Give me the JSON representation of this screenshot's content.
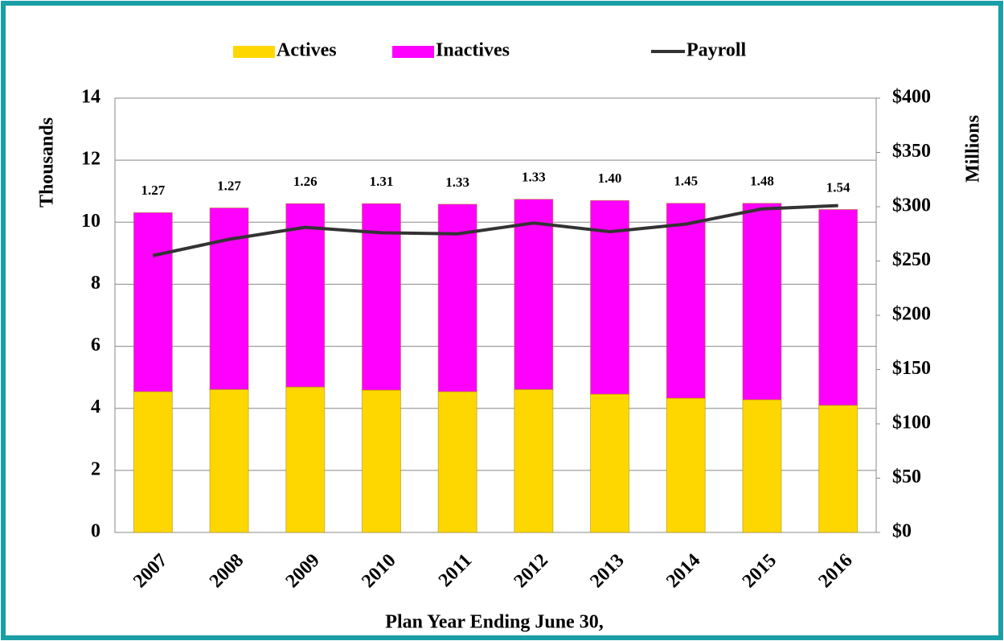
{
  "chart_data": {
    "type": "bar",
    "categories": [
      "2007",
      "2008",
      "2009",
      "2010",
      "2011",
      "2012",
      "2013",
      "2014",
      "2015",
      "2016"
    ],
    "series": [
      {
        "name": "Actives",
        "color": "#ffd700",
        "values": [
          4.54,
          4.61,
          4.69,
          4.59,
          4.54,
          4.61,
          4.46,
          4.33,
          4.28,
          4.1
        ]
      },
      {
        "name": "Inactives",
        "color": "#ff00ff",
        "values": [
          5.77,
          5.85,
          5.91,
          6.01,
          6.04,
          6.13,
          6.24,
          6.28,
          6.33,
          6.31
        ]
      },
      {
        "name": "Payroll",
        "type": "line",
        "axis": "y2",
        "color": "#333333",
        "values": [
          255,
          270,
          281,
          276,
          275,
          285,
          277,
          284,
          298,
          301
        ]
      }
    ],
    "ratio_labels": [
      "1.27",
      "1.27",
      "1.26",
      "1.31",
      "1.33",
      "1.33",
      "1.40",
      "1.45",
      "1.48",
      "1.54"
    ],
    "ylabel": "Thousands",
    "y2label": "Millions",
    "xlabel": "Plan Year Ending June 30,",
    "ylim": [
      0,
      14
    ],
    "yticks": [
      0,
      2,
      4,
      6,
      8,
      10,
      12,
      14
    ],
    "y2lim": [
      0,
      400
    ],
    "y2ticks": [
      {
        "value": 0,
        "label": "$0"
      },
      {
        "value": 50,
        "label": "$50"
      },
      {
        "value": 100,
        "label": "$100"
      },
      {
        "value": 150,
        "label": "$150"
      },
      {
        "value": 200,
        "label": "$200"
      },
      {
        "value": 250,
        "label": "$250"
      },
      {
        "value": 300,
        "label": "$300"
      },
      {
        "value": 350,
        "label": "$350"
      },
      {
        "value": 400,
        "label": "$400"
      }
    ],
    "grid": true,
    "legend": "top"
  }
}
